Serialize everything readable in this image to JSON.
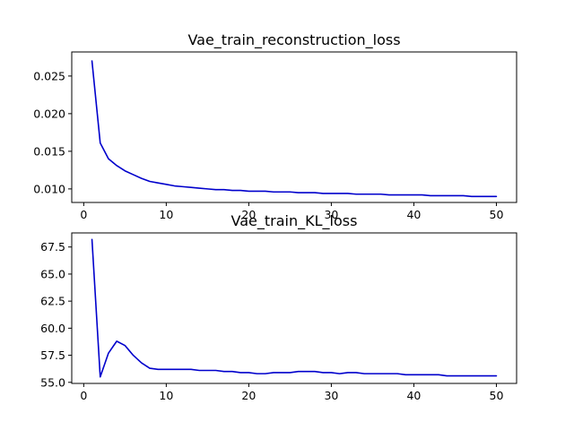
{
  "chart_data": [
    {
      "type": "line",
      "title": "Vae_train_reconstruction_loss",
      "xlabel": "",
      "ylabel": "",
      "xlim": [
        -1.45,
        52.45
      ],
      "ylim": [
        0.0082,
        0.0282
      ],
      "xticks": [
        0,
        10,
        20,
        30,
        40,
        50
      ],
      "xtick_labels": [
        "0",
        "10",
        "20",
        "30",
        "40",
        "50"
      ],
      "yticks": [
        0.01,
        0.015,
        0.02,
        0.025
      ],
      "ytick_labels": [
        "0.010",
        "0.015",
        "0.020",
        "0.025"
      ],
      "grid": false,
      "color": "#0000cc",
      "x": [
        1,
        2,
        3,
        4,
        5,
        6,
        7,
        8,
        9,
        10,
        11,
        12,
        13,
        14,
        15,
        16,
        17,
        18,
        19,
        20,
        21,
        22,
        23,
        24,
        25,
        26,
        27,
        28,
        29,
        30,
        31,
        32,
        33,
        34,
        35,
        36,
        37,
        38,
        39,
        40,
        41,
        42,
        43,
        44,
        45,
        46,
        47,
        48,
        49,
        50
      ],
      "values": [
        0.027,
        0.0161,
        0.014,
        0.0131,
        0.0124,
        0.0119,
        0.0114,
        0.011,
        0.0108,
        0.0106,
        0.0104,
        0.0103,
        0.0102,
        0.0101,
        0.01,
        0.0099,
        0.0099,
        0.0098,
        0.0098,
        0.0097,
        0.0097,
        0.0097,
        0.0096,
        0.0096,
        0.0096,
        0.0095,
        0.0095,
        0.0095,
        0.0094,
        0.0094,
        0.0094,
        0.0094,
        0.0093,
        0.0093,
        0.0093,
        0.0093,
        0.0092,
        0.0092,
        0.0092,
        0.0092,
        0.0092,
        0.0091,
        0.0091,
        0.0091,
        0.0091,
        0.0091,
        0.009,
        0.009,
        0.009,
        0.009
      ]
    },
    {
      "type": "line",
      "title": "Vae_train_KL_loss",
      "xlabel": "",
      "ylabel": "",
      "xlim": [
        -1.45,
        52.45
      ],
      "ylim": [
        54.9,
        68.8
      ],
      "xticks": [
        0,
        10,
        20,
        30,
        40,
        50
      ],
      "xtick_labels": [
        "0",
        "10",
        "20",
        "30",
        "40",
        "50"
      ],
      "yticks": [
        55.0,
        57.5,
        60.0,
        62.5,
        65.0,
        67.5
      ],
      "ytick_labels": [
        "55.0",
        "57.5",
        "60.0",
        "62.5",
        "65.0",
        "67.5"
      ],
      "grid": false,
      "color": "#0000cc",
      "x": [
        1,
        2,
        3,
        4,
        5,
        6,
        7,
        8,
        9,
        10,
        11,
        12,
        13,
        14,
        15,
        16,
        17,
        18,
        19,
        20,
        21,
        22,
        23,
        24,
        25,
        26,
        27,
        28,
        29,
        30,
        31,
        32,
        33,
        34,
        35,
        36,
        37,
        38,
        39,
        40,
        41,
        42,
        43,
        44,
        45,
        46,
        47,
        48,
        49,
        50
      ],
      "values": [
        68.2,
        55.5,
        57.7,
        58.8,
        58.4,
        57.5,
        56.8,
        56.3,
        56.2,
        56.2,
        56.2,
        56.2,
        56.2,
        56.1,
        56.1,
        56.1,
        56.0,
        56.0,
        55.9,
        55.9,
        55.8,
        55.8,
        55.9,
        55.9,
        55.9,
        56.0,
        56.0,
        56.0,
        55.9,
        55.9,
        55.8,
        55.9,
        55.9,
        55.8,
        55.8,
        55.8,
        55.8,
        55.8,
        55.7,
        55.7,
        55.7,
        55.7,
        55.7,
        55.6,
        55.6,
        55.6,
        55.6,
        55.6,
        55.6,
        55.6
      ]
    }
  ]
}
